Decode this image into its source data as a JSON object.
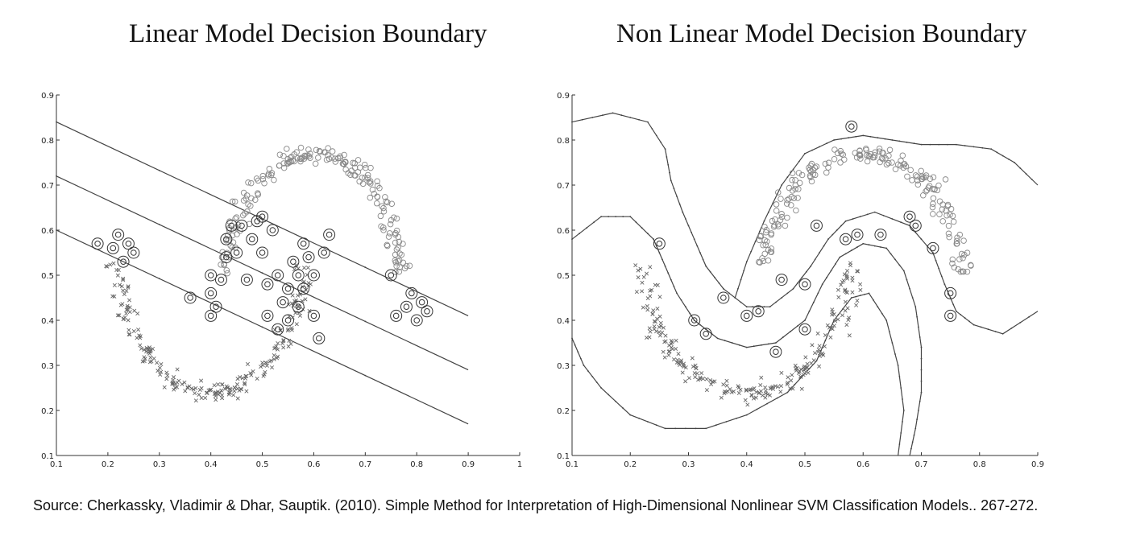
{
  "titles": {
    "left": "Linear Model Decision Boundary",
    "right": "Non Linear Model Decision Boundary"
  },
  "caption": "Source: Cherkassky, Vladimir & Dhar, Sauptik. (2010). Simple Method for Interpretation of High-Dimensional Nonlinear SVM Classification Models.. 267-272.",
  "chart_data": [
    {
      "type": "scatter",
      "title": "Linear Model Decision Boundary",
      "xlim": [
        0.1,
        1.0
      ],
      "ylim": [
        0.1,
        0.9
      ],
      "x_ticks": [
        "0.1",
        "0.2",
        "0.3",
        "0.4",
        "0.5",
        "0.6",
        "0.7",
        "0.8",
        "0.9",
        "1"
      ],
      "y_ticks": [
        "0.1",
        "0.2",
        "0.3",
        "0.4",
        "0.5",
        "0.6",
        "0.7",
        "0.8",
        "0.9"
      ],
      "grid": false,
      "classes": [
        "o",
        "x"
      ],
      "boundary_lines": [
        {
          "role": "margin",
          "points": [
            [
              0.1,
              0.84
            ],
            [
              0.9,
              0.41
            ]
          ]
        },
        {
          "role": "decision",
          "points": [
            [
              0.1,
              0.72
            ],
            [
              0.9,
              0.29
            ]
          ]
        },
        {
          "role": "margin",
          "points": [
            [
              0.1,
              0.6
            ],
            [
              0.9,
              0.17
            ]
          ]
        }
      ],
      "support_vectors": [
        [
          0.18,
          0.57
        ],
        [
          0.21,
          0.56
        ],
        [
          0.22,
          0.59
        ],
        [
          0.23,
          0.53
        ],
        [
          0.24,
          0.57
        ],
        [
          0.25,
          0.55
        ],
        [
          0.36,
          0.45
        ],
        [
          0.4,
          0.41
        ],
        [
          0.4,
          0.46
        ],
        [
          0.4,
          0.5
        ],
        [
          0.41,
          0.43
        ],
        [
          0.42,
          0.49
        ],
        [
          0.43,
          0.54
        ],
        [
          0.43,
          0.58
        ],
        [
          0.44,
          0.61
        ],
        [
          0.45,
          0.55
        ],
        [
          0.46,
          0.61
        ],
        [
          0.47,
          0.49
        ],
        [
          0.48,
          0.58
        ],
        [
          0.49,
          0.62
        ],
        [
          0.5,
          0.63
        ],
        [
          0.5,
          0.55
        ],
        [
          0.51,
          0.48
        ],
        [
          0.51,
          0.41
        ],
        [
          0.52,
          0.6
        ],
        [
          0.53,
          0.5
        ],
        [
          0.53,
          0.38
        ],
        [
          0.54,
          0.44
        ],
        [
          0.55,
          0.47
        ],
        [
          0.55,
          0.4
        ],
        [
          0.56,
          0.53
        ],
        [
          0.57,
          0.5
        ],
        [
          0.57,
          0.43
        ],
        [
          0.58,
          0.57
        ],
        [
          0.58,
          0.47
        ],
        [
          0.59,
          0.54
        ],
        [
          0.6,
          0.5
        ],
        [
          0.6,
          0.41
        ],
        [
          0.61,
          0.36
        ],
        [
          0.62,
          0.55
        ],
        [
          0.63,
          0.59
        ],
        [
          0.75,
          0.5
        ],
        [
          0.76,
          0.41
        ],
        [
          0.78,
          0.43
        ],
        [
          0.79,
          0.46
        ],
        [
          0.8,
          0.4
        ],
        [
          0.81,
          0.44
        ],
        [
          0.82,
          0.42
        ]
      ]
    },
    {
      "type": "scatter",
      "title": "Non Linear Model Decision Boundary",
      "xlim": [
        0.1,
        0.9
      ],
      "ylim": [
        0.1,
        0.9
      ],
      "x_ticks": [
        "0.1",
        "0.2",
        "0.3",
        "0.4",
        "0.5",
        "0.6",
        "0.7",
        "0.8",
        "0.9"
      ],
      "y_ticks": [
        "0.1",
        "0.2",
        "0.3",
        "0.4",
        "0.5",
        "0.6",
        "0.7",
        "0.8",
        "0.9"
      ],
      "grid": false,
      "classes": [
        "o",
        "x"
      ],
      "boundary_lines": [
        {
          "role": "margin",
          "points": [
            [
              0.1,
              0.84
            ],
            [
              0.17,
              0.86
            ],
            [
              0.23,
              0.84
            ],
            [
              0.26,
              0.78
            ],
            [
              0.27,
              0.71
            ],
            [
              0.29,
              0.64
            ],
            [
              0.31,
              0.58
            ],
            [
              0.33,
              0.52
            ],
            [
              0.36,
              0.47
            ],
            [
              0.4,
              0.43
            ],
            [
              0.44,
              0.43
            ],
            [
              0.48,
              0.47
            ],
            [
              0.51,
              0.52
            ],
            [
              0.54,
              0.58
            ],
            [
              0.57,
              0.62
            ],
            [
              0.62,
              0.64
            ],
            [
              0.68,
              0.61
            ],
            [
              0.72,
              0.55
            ],
            [
              0.74,
              0.48
            ],
            [
              0.76,
              0.42
            ],
            [
              0.79,
              0.39
            ],
            [
              0.84,
              0.37
            ],
            [
              0.9,
              0.42
            ]
          ]
        },
        {
          "role": "decision",
          "points": [
            [
              0.1,
              0.58
            ],
            [
              0.15,
              0.63
            ],
            [
              0.2,
              0.63
            ],
            [
              0.24,
              0.58
            ],
            [
              0.26,
              0.52
            ],
            [
              0.28,
              0.46
            ],
            [
              0.31,
              0.4
            ],
            [
              0.35,
              0.36
            ],
            [
              0.4,
              0.34
            ],
            [
              0.45,
              0.35
            ],
            [
              0.5,
              0.4
            ],
            [
              0.53,
              0.48
            ],
            [
              0.56,
              0.54
            ],
            [
              0.6,
              0.57
            ],
            [
              0.64,
              0.56
            ],
            [
              0.67,
              0.51
            ],
            [
              0.69,
              0.43
            ],
            [
              0.7,
              0.34
            ],
            [
              0.7,
              0.24
            ],
            [
              0.69,
              0.16
            ],
            [
              0.68,
              0.1
            ]
          ]
        },
        {
          "role": "margin",
          "points": [
            [
              0.1,
              0.36
            ],
            [
              0.12,
              0.3
            ],
            [
              0.15,
              0.25
            ],
            [
              0.2,
              0.19
            ],
            [
              0.26,
              0.16
            ],
            [
              0.33,
              0.16
            ],
            [
              0.4,
              0.19
            ],
            [
              0.47,
              0.24
            ],
            [
              0.52,
              0.31
            ],
            [
              0.55,
              0.4
            ],
            [
              0.58,
              0.45
            ],
            [
              0.61,
              0.46
            ],
            [
              0.64,
              0.4
            ],
            [
              0.66,
              0.3
            ],
            [
              0.67,
              0.2
            ],
            [
              0.66,
              0.1
            ]
          ]
        },
        {
          "role": "margin",
          "points": [
            [
              0.38,
              0.45
            ],
            [
              0.4,
              0.53
            ],
            [
              0.43,
              0.62
            ],
            [
              0.46,
              0.7
            ],
            [
              0.5,
              0.77
            ],
            [
              0.55,
              0.8
            ],
            [
              0.6,
              0.81
            ],
            [
              0.65,
              0.8
            ],
            [
              0.7,
              0.79
            ],
            [
              0.76,
              0.79
            ],
            [
              0.82,
              0.78
            ],
            [
              0.86,
              0.75
            ],
            [
              0.9,
              0.7
            ]
          ]
        }
      ],
      "support_vectors": [
        [
          0.25,
          0.57
        ],
        [
          0.31,
          0.4
        ],
        [
          0.33,
          0.37
        ],
        [
          0.36,
          0.45
        ],
        [
          0.4,
          0.41
        ],
        [
          0.42,
          0.42
        ],
        [
          0.45,
          0.33
        ],
        [
          0.46,
          0.49
        ],
        [
          0.5,
          0.38
        ],
        [
          0.5,
          0.48
        ],
        [
          0.52,
          0.61
        ],
        [
          0.57,
          0.58
        ],
        [
          0.58,
          0.83
        ],
        [
          0.59,
          0.59
        ],
        [
          0.63,
          0.59
        ],
        [
          0.68,
          0.63
        ],
        [
          0.69,
          0.61
        ],
        [
          0.72,
          0.56
        ],
        [
          0.75,
          0.46
        ],
        [
          0.75,
          0.41
        ]
      ]
    }
  ]
}
